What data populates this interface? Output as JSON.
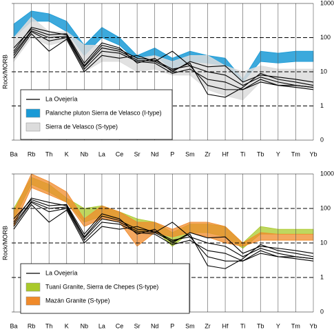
{
  "chart_data": [
    {
      "type": "line",
      "log_scale": true,
      "ylabel": "Rock/MORB",
      "categories": [
        "Ba",
        "Rb",
        "Th",
        "K",
        "Nb",
        "La",
        "Ce",
        "Sr",
        "Nd",
        "P",
        "Sm",
        "Zr",
        "Hf",
        "Ti",
        "Tb",
        "Y",
        "Tm",
        "Yb"
      ],
      "ylim": [
        0.1,
        1000
      ],
      "yticks": [
        1000,
        100,
        10,
        1,
        {
          "value": 0.1,
          "label": "0"
        }
      ],
      "series": [
        {
          "name": "La Ovejería",
          "color": "#000000",
          "values": [
            [
              40,
              200,
              150,
              120,
              15,
              60,
              45,
              25,
              22,
              12,
              15,
              10,
              8,
              4,
              7,
              5,
              4,
              3.5
            ],
            [
              30,
              150,
              80,
              100,
              12,
              40,
              35,
              20,
              18,
              9,
              12,
              6,
              5,
              3,
              6,
              4,
              3.5,
              3
            ],
            [
              50,
              180,
              120,
              130,
              18,
              70,
              50,
              18,
              25,
              10,
              20,
              14,
              15,
              5,
              8,
              7,
              6,
              5
            ],
            [
              25,
              130,
              40,
              90,
              10,
              30,
              25,
              30,
              20,
              40,
              15,
              4,
              3,
              3,
              5,
              4,
              4,
              3.5
            ],
            [
              35,
              160,
              100,
              110,
              14,
              50,
              40,
              22,
              20,
              11,
              18,
              2.2,
              1.8,
              3.5,
              9,
              6,
              5,
              4
            ]
          ]
        }
      ],
      "bands": [
        {
          "name": "Palanche pluton Sierra de Velasco (I-type)",
          "color": "#1a9ad6",
          "upper": [
            250,
            600,
            500,
            300,
            60,
            200,
            100,
            30,
            50,
            25,
            40,
            30,
            25,
            6,
            40,
            35,
            40,
            40
          ],
          "lower": [
            100,
            300,
            300,
            150,
            30,
            100,
            60,
            20,
            30,
            12,
            20,
            18,
            15,
            5,
            20,
            18,
            20,
            20
          ]
        },
        {
          "name": "Sierra de Velasco (S-type)",
          "color": "#dcdcdc",
          "upper": [
            100,
            400,
            150,
            150,
            60,
            60,
            45,
            25,
            30,
            20,
            30,
            30,
            15,
            10,
            15,
            12,
            12,
            12
          ],
          "lower": [
            20,
            100,
            60,
            80,
            10,
            20,
            20,
            10,
            12,
            8,
            8,
            3,
            2,
            1.5,
            5,
            4,
            3.5,
            3
          ]
        }
      ]
    },
    {
      "type": "line",
      "log_scale": true,
      "ylabel": "Rock/MORB",
      "categories": [
        "Ba",
        "Rb",
        "Th",
        "K",
        "Nb",
        "La",
        "Ce",
        "Sr",
        "Nd",
        "P",
        "Sm",
        "Zr",
        "Hf",
        "Ti",
        "Tb",
        "Y",
        "Tm",
        "Yb"
      ],
      "ylim": [
        0.1,
        1000
      ],
      "yticks": [
        1000,
        100,
        10,
        1,
        {
          "value": 0.1,
          "label": "0"
        }
      ],
      "series": [
        {
          "name": "La Ovejería",
          "color": "#000000",
          "values": [
            [
              40,
              200,
              150,
              120,
              15,
              60,
              45,
              25,
              22,
              12,
              15,
              10,
              8,
              4,
              7,
              5,
              4,
              3.5
            ],
            [
              30,
              150,
              80,
              100,
              12,
              40,
              35,
              20,
              18,
              9,
              12,
              6,
              5,
              3,
              6,
              4,
              3.5,
              3
            ],
            [
              50,
              180,
              120,
              130,
              18,
              70,
              50,
              18,
              25,
              10,
              20,
              14,
              15,
              5,
              8,
              7,
              6,
              5
            ],
            [
              25,
              130,
              40,
              90,
              10,
              30,
              25,
              30,
              20,
              40,
              15,
              4,
              3,
              3,
              5,
              4,
              4,
              3.5
            ],
            [
              35,
              160,
              100,
              110,
              14,
              50,
              40,
              22,
              20,
              11,
              18,
              2.2,
              1.8,
              3.5,
              9,
              6,
              5,
              4
            ]
          ]
        }
      ],
      "bands": [
        {
          "name": "Tuaní Granite, Sierra de Chepes (S-type)",
          "color": "#a9c92a",
          "upper": [
            100,
            800,
            500,
            200,
            100,
            120,
            80,
            50,
            40,
            20,
            35,
            35,
            30,
            10,
            30,
            25,
            25,
            25
          ],
          "lower": [
            50,
            500,
            300,
            150,
            40,
            60,
            50,
            20,
            25,
            8,
            20,
            20,
            15,
            7,
            18,
            18,
            18,
            18
          ]
        },
        {
          "name": "Mazán Granite (S-type)",
          "color": "#f08a2a",
          "upper": [
            80,
            1000,
            600,
            300,
            50,
            120,
            80,
            40,
            40,
            25,
            40,
            40,
            30,
            10,
            20,
            18,
            18,
            18
          ],
          "lower": [
            30,
            400,
            250,
            150,
            30,
            50,
            40,
            8,
            20,
            15,
            20,
            15,
            10,
            8,
            12,
            12,
            12,
            12
          ]
        }
      ]
    }
  ]
}
